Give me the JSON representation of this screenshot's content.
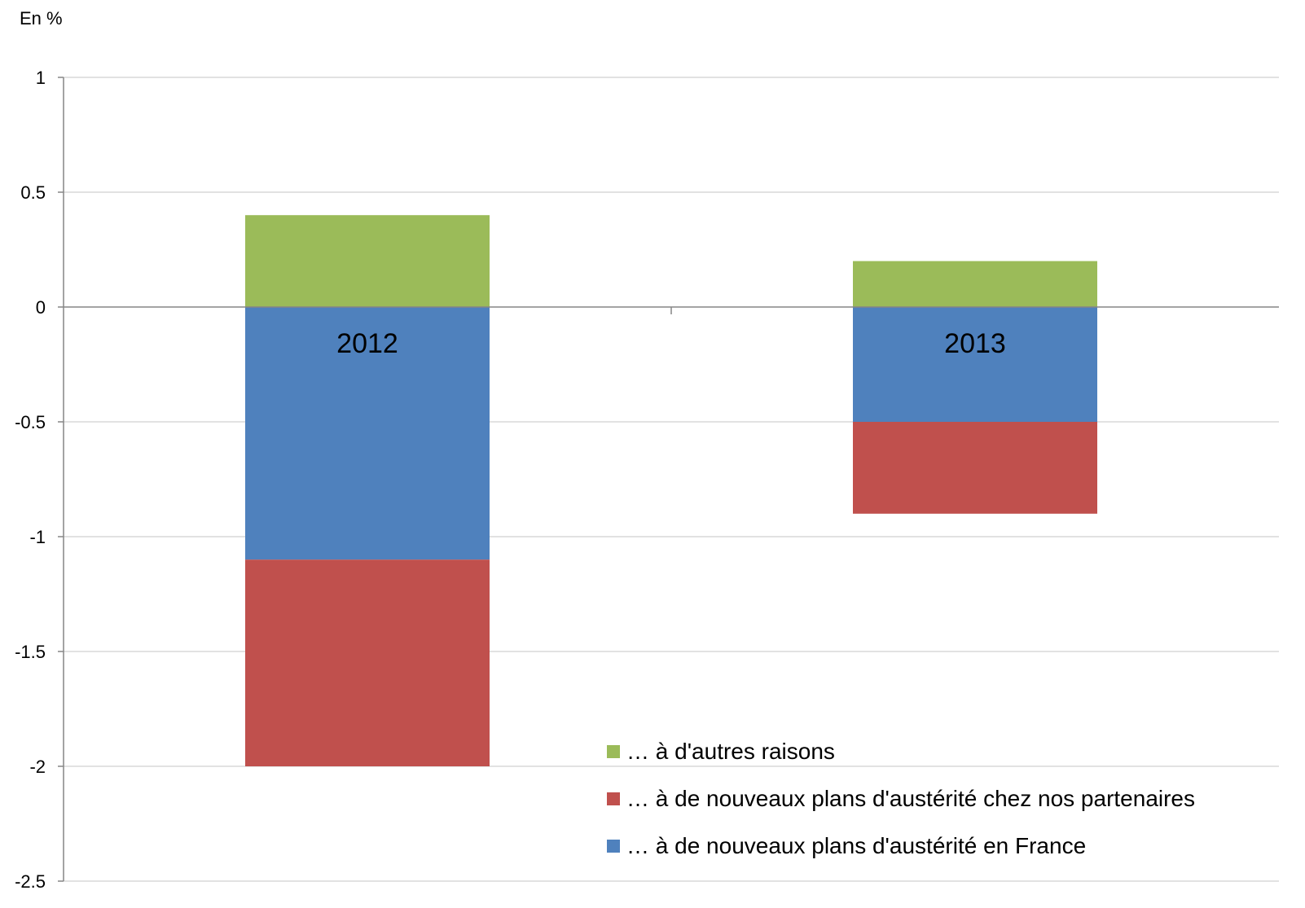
{
  "chart_data": {
    "type": "bar",
    "stacked": true,
    "ylabel": "En %",
    "categories": [
      "2012",
      "2013"
    ],
    "series": [
      {
        "name": "… à de nouveaux plans d'austérité en France",
        "color": "#4F81BD",
        "values": [
          -1.1,
          -0.5
        ]
      },
      {
        "name": "… à de nouveaux plans d'austérité chez nos partenaires",
        "color": "#C0504D",
        "values": [
          -0.9,
          -0.4
        ]
      },
      {
        "name": "… à d'autres raisons",
        "color": "#9BBB59",
        "values": [
          0.4,
          0.2
        ]
      }
    ],
    "legend_order": [
      2,
      1,
      0
    ],
    "ylim": [
      -2.5,
      1
    ],
    "yticks": [
      "1",
      "0.5",
      "0",
      "-0.5",
      "-1",
      "-1.5",
      "-2",
      "-2.5"
    ],
    "ytick_values": [
      1,
      0.5,
      0,
      -0.5,
      -1,
      -1.5,
      -2,
      -2.5
    ],
    "grid": true,
    "legend_position": "bottom-right"
  }
}
